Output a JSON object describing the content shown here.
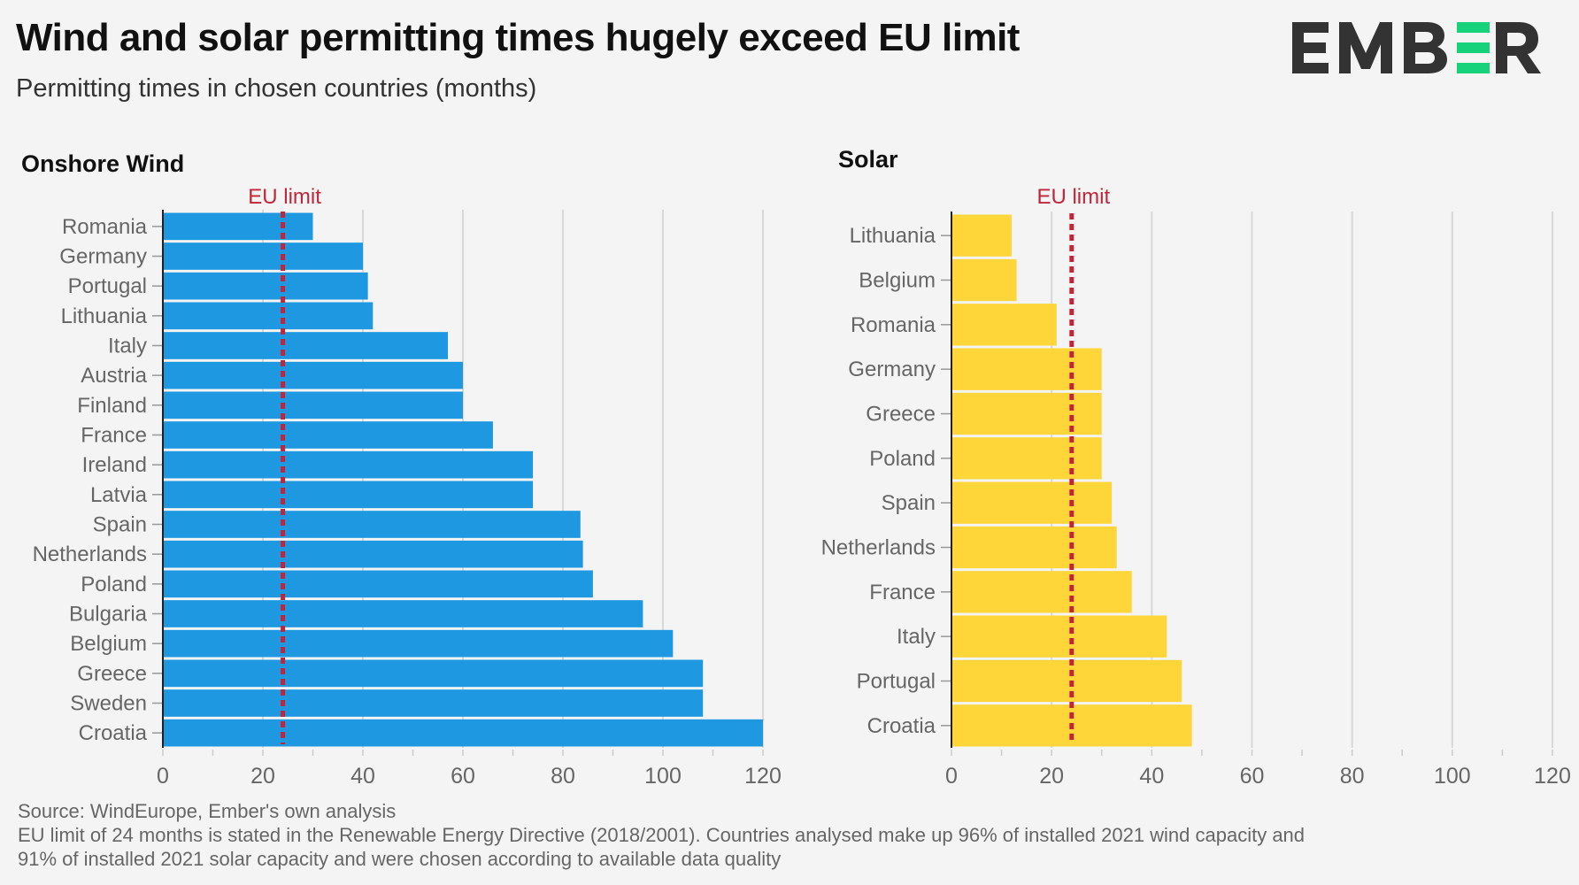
{
  "title": "Wind and solar permitting times hugely exceed EU limit",
  "subtitle": "Permitting times in chosen countries (months)",
  "logo_text": "EMBER",
  "colors": {
    "wind": "#1e98e0",
    "solar": "#ffd63a",
    "eu_limit": "#c0253a",
    "logo_dark": "#333333",
    "logo_green": "#17d27a"
  },
  "footer": {
    "source": "Source: WindEurope, Ember's own analysis",
    "note_line1": "EU limit of 24 months is stated in the Renewable Energy Directive (2018/2001). Countries analysed make up 96% of installed 2021 wind capacity and",
    "note_line2": "91% of installed 2021 solar capacity and were chosen according to available data quality"
  },
  "chart_data": [
    {
      "type": "bar",
      "orientation": "horizontal",
      "title": "Onshore Wind",
      "categories": [
        "Romania",
        "Germany",
        "Portugal",
        "Lithuania",
        "Italy",
        "Austria",
        "Finland",
        "France",
        "Ireland",
        "Latvia",
        "Spain",
        "Netherlands",
        "Poland",
        "Bulgaria",
        "Belgium",
        "Greece",
        "Sweden",
        "Croatia"
      ],
      "values": [
        30,
        40,
        41,
        42,
        57,
        60,
        60,
        66,
        74,
        74,
        83.5,
        84,
        86,
        96,
        102,
        108,
        108,
        120
      ],
      "xlim": [
        0,
        120
      ],
      "xticks": [
        "0",
        "20",
        "40",
        "60",
        "80",
        "100",
        "120"
      ],
      "grid": true,
      "reference_line": {
        "value": 24,
        "label": "EU limit"
      }
    },
    {
      "type": "bar",
      "orientation": "horizontal",
      "title": "Solar",
      "categories": [
        "Lithuania",
        "Belgium",
        "Romania",
        "Germany",
        "Greece",
        "Poland",
        "Spain",
        "Netherlands",
        "France",
        "Italy",
        "Portugal",
        "Croatia"
      ],
      "values": [
        12,
        13,
        21,
        30,
        30,
        30,
        32,
        33,
        36,
        43,
        46,
        48
      ],
      "xlim": [
        0,
        120
      ],
      "xticks": [
        "0",
        "20",
        "40",
        "60",
        "80",
        "100",
        "120"
      ],
      "grid": true,
      "reference_line": {
        "value": 24,
        "label": "EU limit"
      }
    }
  ]
}
